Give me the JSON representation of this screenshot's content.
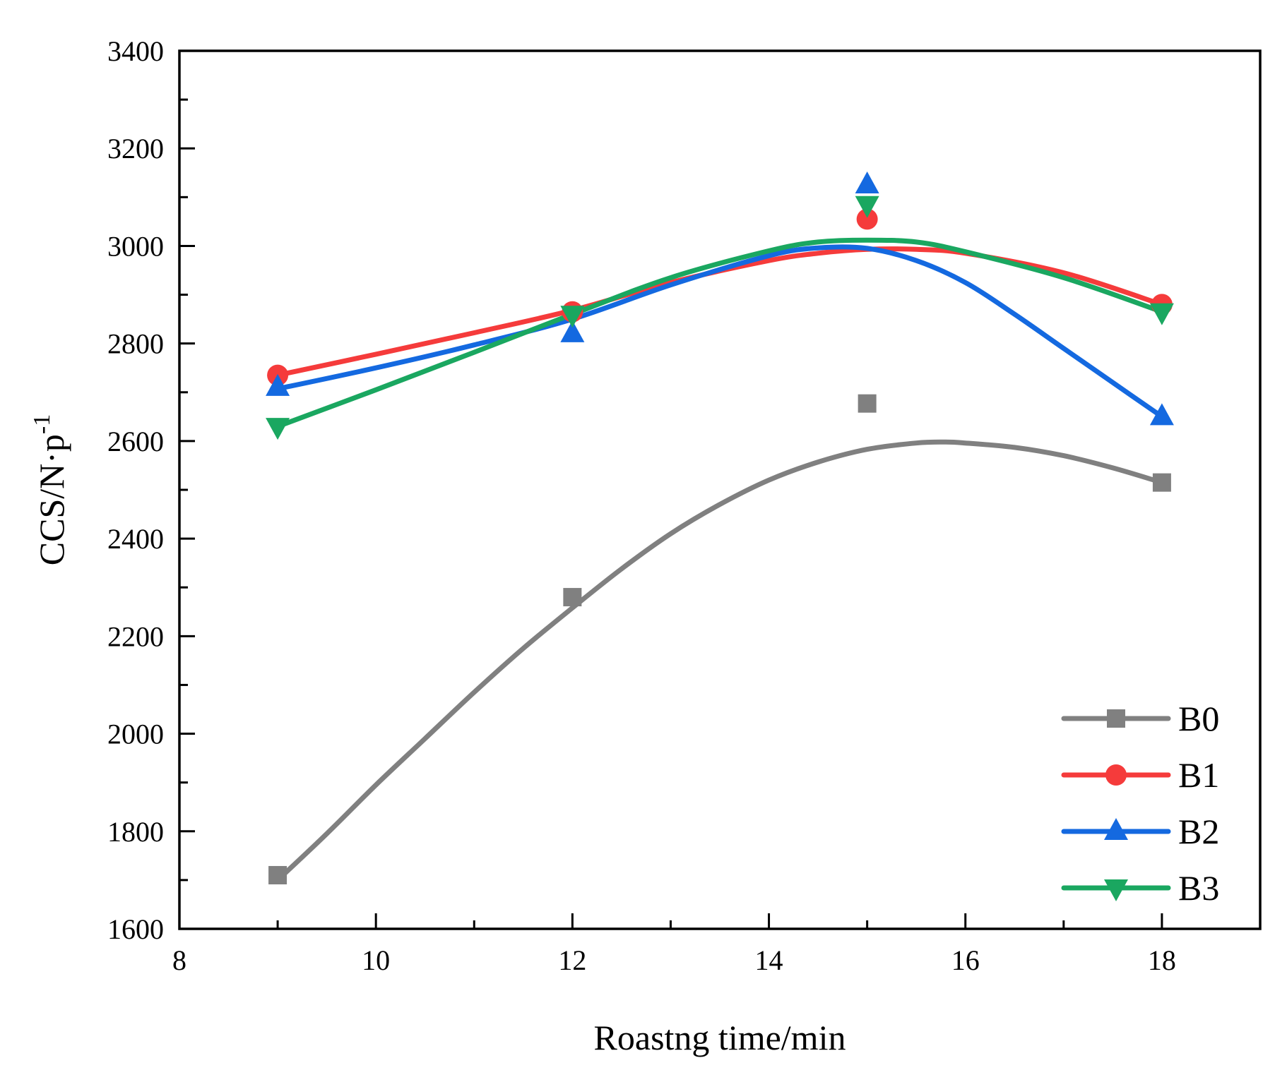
{
  "chart_data": {
    "type": "scatter",
    "title": "",
    "xlabel": "Roastng time/min",
    "ylabel": "CCS/N·p",
    "ylabel_sup": "-1",
    "xlim": [
      8,
      19
    ],
    "ylim": [
      1600,
      3400
    ],
    "xticks": [
      8,
      10,
      12,
      14,
      16,
      18
    ],
    "yticks": [
      1600,
      1800,
      2000,
      2200,
      2400,
      2600,
      2800,
      3000,
      3200,
      3400
    ],
    "grid": false,
    "legend_position": "bottom-right",
    "x": [
      9,
      12,
      15,
      18
    ],
    "series": [
      {
        "name": "B0",
        "marker": "square",
        "color": "#808080",
        "values": [
          1710,
          2280,
          2677,
          2515
        ],
        "fit": [
          [
            9,
            1700
          ],
          [
            9.5,
            1795
          ],
          [
            10,
            1895
          ],
          [
            10.5,
            1990
          ],
          [
            11,
            2085
          ],
          [
            11.5,
            2175
          ],
          [
            12,
            2258
          ],
          [
            12.5,
            2338
          ],
          [
            13,
            2410
          ],
          [
            13.5,
            2470
          ],
          [
            14,
            2520
          ],
          [
            14.5,
            2557
          ],
          [
            15,
            2583
          ],
          [
            15.5,
            2596
          ],
          [
            15.8,
            2598
          ],
          [
            16,
            2596
          ],
          [
            16.5,
            2587
          ],
          [
            17,
            2570
          ],
          [
            17.5,
            2545
          ],
          [
            18,
            2515
          ]
        ]
      },
      {
        "name": "B1",
        "marker": "circle",
        "color": "#f53b3b",
        "values": [
          2735,
          2865,
          3055,
          2880
        ],
        "fit": [
          [
            9,
            2735
          ],
          [
            10,
            2778
          ],
          [
            11,
            2822
          ],
          [
            12,
            2868
          ],
          [
            13,
            2925
          ],
          [
            14,
            2970
          ],
          [
            14.5,
            2985
          ],
          [
            15,
            2993
          ],
          [
            15.5,
            2993
          ],
          [
            16,
            2985
          ],
          [
            17,
            2945
          ],
          [
            18,
            2880
          ]
        ]
      },
      {
        "name": "B2",
        "marker": "triangle-up",
        "color": "#1469e0",
        "values": [
          2710,
          2820,
          3125,
          2650
        ],
        "fit": [
          [
            9,
            2707
          ],
          [
            10,
            2750
          ],
          [
            11,
            2797
          ],
          [
            12,
            2850
          ],
          [
            13,
            2920
          ],
          [
            14,
            2980
          ],
          [
            14.5,
            2996
          ],
          [
            15,
            2995
          ],
          [
            15.5,
            2970
          ],
          [
            16,
            2925
          ],
          [
            16.5,
            2860
          ],
          [
            17,
            2790
          ],
          [
            17.5,
            2720
          ],
          [
            18,
            2650
          ]
        ]
      },
      {
        "name": "B3",
        "marker": "triangle-down",
        "color": "#1aa760",
        "values": [
          2630,
          2860,
          3085,
          2865
        ],
        "fit": [
          [
            9,
            2630
          ],
          [
            10,
            2705
          ],
          [
            11,
            2782
          ],
          [
            12,
            2860
          ],
          [
            13,
            2935
          ],
          [
            14,
            2990
          ],
          [
            14.5,
            3008
          ],
          [
            15,
            3012
          ],
          [
            15.5,
            3008
          ],
          [
            16,
            2988
          ],
          [
            17,
            2935
          ],
          [
            18,
            2865
          ]
        ]
      }
    ]
  }
}
